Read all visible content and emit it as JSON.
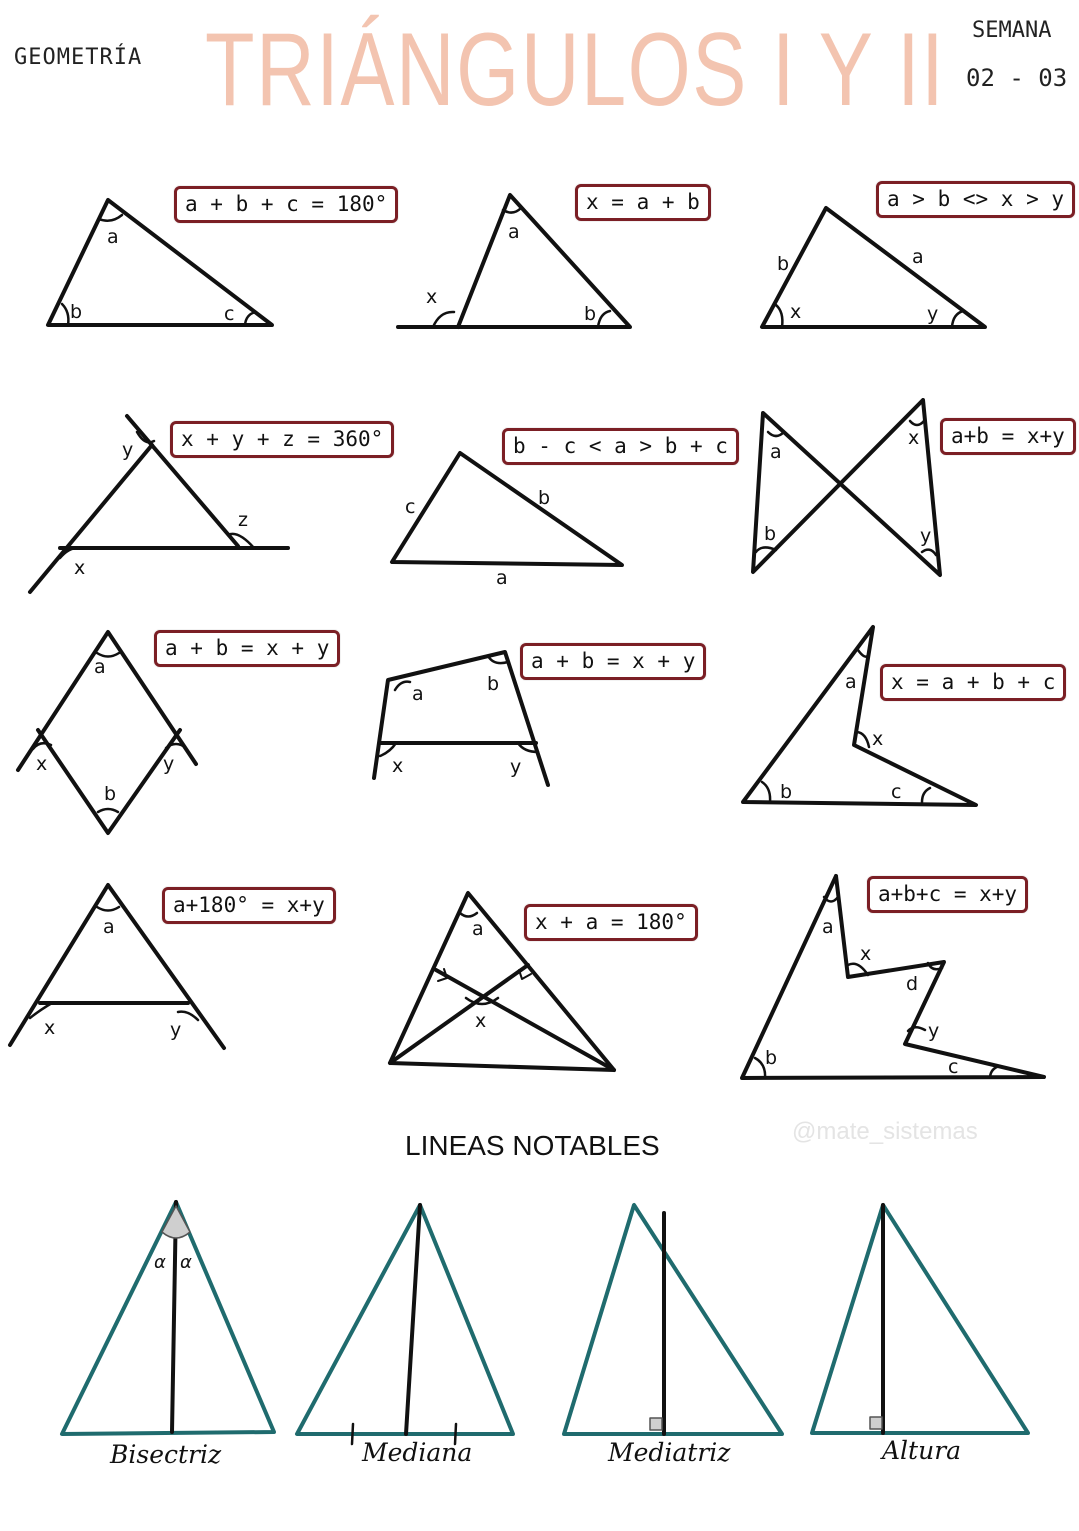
{
  "header": {
    "subject": "GEOMETRÍA",
    "title": "TRIÁNGULOS I Y II",
    "week_label": "SEMANA",
    "week_number": "02 - 03"
  },
  "formulas": {
    "f1": "a + b + c = 180°",
    "f2": "x = a + b",
    "f3": "a > b <> x > y",
    "f4": "x + y + z = 360°",
    "f5": "b - c < a > b + c",
    "f6": "a+b = x+y",
    "f7": "a + b = x + y",
    "f8": "a + b = x + y",
    "f9": "x = a + b + c",
    "f10": "a+180° = x+y",
    "f11": "x + a = 180°",
    "f12": "a+b+c = x+y"
  },
  "section_title": "LINEAS NOTABLES",
  "watermark": "@mate_sistemas",
  "notable_lines": {
    "bisectriz": "Bisectriz",
    "mediana": "Mediana",
    "mediatriz": "Mediatriz",
    "altura": "Altura",
    "alpha": "α"
  },
  "labels": {
    "a": "a",
    "b": "b",
    "c": "c",
    "d": "d",
    "x": "x",
    "y": "y",
    "z": "z"
  },
  "colors": {
    "title": "#f3c4b0",
    "formula_border": "#7b1f25",
    "teal": "#1f6b6e"
  }
}
